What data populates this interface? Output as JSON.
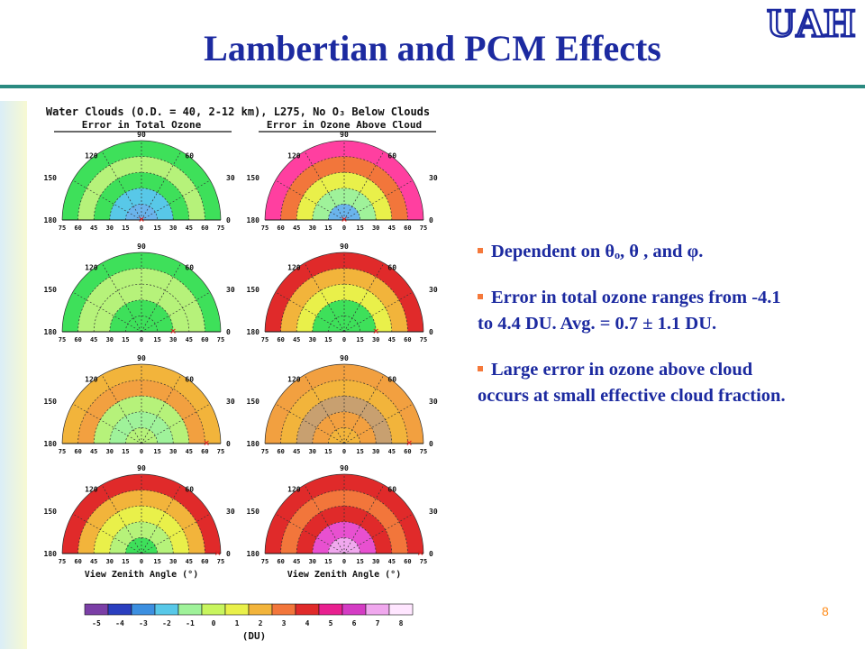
{
  "slide": {
    "title": "Lambertian and PCM Effects",
    "page_number": "8",
    "logo_text": "UAH"
  },
  "figure": {
    "header": "Water Clouds (O.D. = 40, 2-12 km), L275, No O₃ Below Clouds",
    "col_left_title": "Error in Total Ozone",
    "col_right_title": "Error in Ozone Above Cloud",
    "axis_label": "View Zenith Angle (°)",
    "azimuth_labels": [
      "90",
      "120",
      "60",
      "150",
      "30",
      "180",
      "0"
    ],
    "zenith_ticks": [
      "75",
      "60",
      "45",
      "30",
      "15",
      "0",
      "15",
      "30",
      "45",
      "60",
      "75"
    ],
    "colorbar_ticks": [
      "-5",
      "-4",
      "-3",
      "-2",
      "-1",
      "0",
      "1",
      "2",
      "3",
      "4",
      "5",
      "6",
      "7",
      "8"
    ],
    "colorbar_unit": "(DU)",
    "colorbar_colors": [
      "#7b3fa6",
      "#2a3fbf",
      "#3c8fe0",
      "#58c8e8",
      "#9ff29a",
      "#c8f55e",
      "#e9f04a",
      "#f2b43b",
      "#f2763b",
      "#e02a2a",
      "#e8208f",
      "#d43cc4",
      "#f0a8ee",
      "#ffe6ff"
    ]
  },
  "bullets": {
    "b1": "Dependent on θₒ, θ , and φ.",
    "b2": "Error in total ozone ranges from -4.1 to 4.4 DU. Avg. = 0.7 ± 1.1 DU.",
    "b3": "Large error in ozone above cloud occurs at small effective cloud fraction."
  }
}
